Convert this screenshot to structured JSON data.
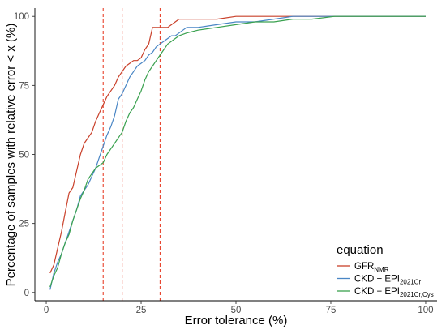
{
  "chart_data": {
    "type": "line",
    "xlabel": "Error tolerance (%)",
    "ylabel": "Percentage of samples with relative error < x (%)",
    "xlim": [
      -3,
      103
    ],
    "ylim": [
      -3,
      103
    ],
    "x_ticks": [
      0,
      25,
      50,
      75,
      100
    ],
    "y_ticks": [
      0,
      25,
      50,
      75,
      100
    ],
    "grid": false,
    "legend": {
      "title": "equation",
      "placement": "bottom-right",
      "entries": [
        {
          "main": "GFR",
          "sub": "NMR"
        },
        {
          "main": "CKD − EPI",
          "sub": "2021Cr"
        },
        {
          "main": "CKD − EPI",
          "sub": "2021Cr,Cys"
        }
      ]
    },
    "reference_lines": {
      "orientation": "vertical",
      "style": "dashed",
      "color": "#e8412a",
      "x": [
        15,
        20,
        30
      ]
    },
    "series": [
      {
        "color": "#c9402a",
        "points": [
          [
            1,
            7
          ],
          [
            2,
            10
          ],
          [
            3,
            16
          ],
          [
            4,
            22
          ],
          [
            5,
            29
          ],
          [
            6,
            36
          ],
          [
            7,
            38
          ],
          [
            8,
            44
          ],
          [
            9,
            50
          ],
          [
            10,
            54
          ],
          [
            11,
            56
          ],
          [
            12,
            58
          ],
          [
            13,
            62
          ],
          [
            14,
            65
          ],
          [
            15,
            68
          ],
          [
            16,
            71
          ],
          [
            17,
            73
          ],
          [
            18,
            75
          ],
          [
            19,
            78
          ],
          [
            20,
            80
          ],
          [
            21,
            82
          ],
          [
            22,
            83
          ],
          [
            23,
            84
          ],
          [
            24,
            84
          ],
          [
            25,
            85
          ],
          [
            26,
            88
          ],
          [
            27,
            90
          ],
          [
            28,
            96
          ],
          [
            29,
            96
          ],
          [
            30,
            96
          ],
          [
            32,
            96
          ],
          [
            33,
            97
          ],
          [
            35,
            99
          ],
          [
            40,
            99
          ],
          [
            45,
            99
          ],
          [
            50,
            100
          ],
          [
            75,
            100
          ],
          [
            100,
            100
          ]
        ]
      },
      {
        "color": "#4a86c5",
        "points": [
          [
            1,
            1
          ],
          [
            2,
            7
          ],
          [
            3,
            11
          ],
          [
            4,
            14
          ],
          [
            5,
            18
          ],
          [
            6,
            22
          ],
          [
            7,
            26
          ],
          [
            8,
            30
          ],
          [
            9,
            35
          ],
          [
            10,
            37
          ],
          [
            11,
            39
          ],
          [
            12,
            42
          ],
          [
            13,
            45
          ],
          [
            14,
            49
          ],
          [
            15,
            53
          ],
          [
            16,
            57
          ],
          [
            17,
            60
          ],
          [
            18,
            64
          ],
          [
            19,
            70
          ],
          [
            20,
            72
          ],
          [
            21,
            75
          ],
          [
            22,
            78
          ],
          [
            23,
            80
          ],
          [
            24,
            82
          ],
          [
            25,
            83
          ],
          [
            26,
            84
          ],
          [
            27,
            86
          ],
          [
            28,
            87
          ],
          [
            29,
            89
          ],
          [
            30,
            90
          ],
          [
            31,
            91
          ],
          [
            32,
            92
          ],
          [
            33,
            93
          ],
          [
            34,
            93
          ],
          [
            35,
            94
          ],
          [
            37,
            96
          ],
          [
            40,
            96
          ],
          [
            45,
            97
          ],
          [
            50,
            98
          ],
          [
            55,
            98
          ],
          [
            60,
            99
          ],
          [
            65,
            100
          ],
          [
            75,
            100
          ],
          [
            100,
            100
          ]
        ]
      },
      {
        "color": "#3aa14f",
        "points": [
          [
            1,
            2
          ],
          [
            2,
            6
          ],
          [
            3,
            9
          ],
          [
            4,
            14
          ],
          [
            5,
            18
          ],
          [
            6,
            21
          ],
          [
            7,
            26
          ],
          [
            8,
            30
          ],
          [
            9,
            34
          ],
          [
            10,
            37
          ],
          [
            11,
            41
          ],
          [
            12,
            43
          ],
          [
            13,
            45
          ],
          [
            14,
            46
          ],
          [
            15,
            47
          ],
          [
            16,
            50
          ],
          [
            17,
            52
          ],
          [
            18,
            54
          ],
          [
            19,
            56
          ],
          [
            20,
            58
          ],
          [
            21,
            62
          ],
          [
            22,
            65
          ],
          [
            23,
            67
          ],
          [
            24,
            70
          ],
          [
            25,
            73
          ],
          [
            26,
            77
          ],
          [
            27,
            80
          ],
          [
            28,
            82
          ],
          [
            29,
            84
          ],
          [
            30,
            86
          ],
          [
            31,
            88
          ],
          [
            32,
            90
          ],
          [
            33,
            91
          ],
          [
            34,
            92
          ],
          [
            35,
            93
          ],
          [
            37,
            94
          ],
          [
            40,
            95
          ],
          [
            45,
            96
          ],
          [
            50,
            97
          ],
          [
            55,
            98
          ],
          [
            60,
            98
          ],
          [
            65,
            99
          ],
          [
            70,
            99
          ],
          [
            76,
            100
          ],
          [
            100,
            100
          ]
        ]
      }
    ]
  }
}
